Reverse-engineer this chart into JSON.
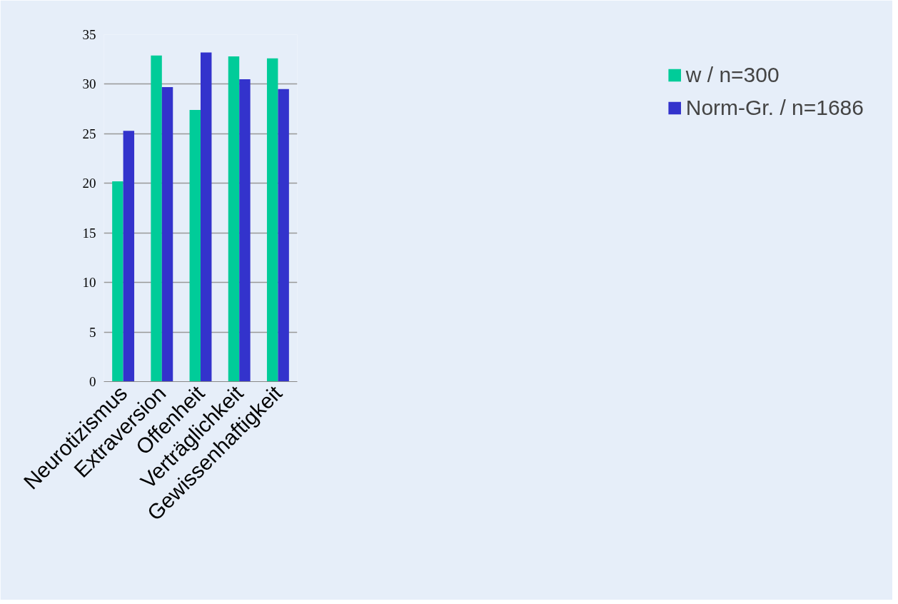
{
  "chart_data": {
    "type": "bar",
    "categories": [
      "Neurotizismus",
      "Extraversion",
      "Offenheit",
      "Verträglichkeit",
      "Gewissenhaftigkeit"
    ],
    "series": [
      {
        "name": "w / n=300",
        "color": "#00cc99",
        "values": [
          20.2,
          32.9,
          27.4,
          32.8,
          32.6
        ]
      },
      {
        "name": "Norm-Gr. / n=1686",
        "color": "#3333cc",
        "values": [
          25.3,
          29.7,
          33.2,
          30.5,
          29.5
        ]
      }
    ],
    "ylim": [
      0,
      35
    ],
    "yticks": [
      0,
      5,
      10,
      15,
      20,
      25,
      30,
      35
    ],
    "grid": "y",
    "legend": "right"
  }
}
